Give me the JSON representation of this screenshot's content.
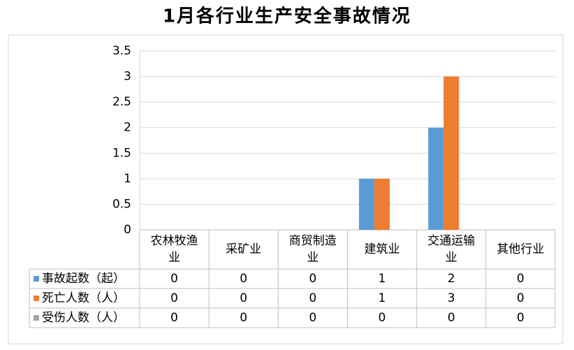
{
  "chart_data": {
    "type": "bar",
    "title": "1月各行业生产安全事故情况",
    "categories": [
      "农林牧渔业",
      "采矿业",
      "商贸制造业",
      "建筑业",
      "交通运输业",
      "其他行业"
    ],
    "series": [
      {
        "name": "事故起数（起）",
        "color": "#5b9bd5",
        "values": [
          0,
          0,
          0,
          1,
          2,
          0
        ]
      },
      {
        "name": "死亡人数（人）",
        "color": "#ed7d31",
        "values": [
          0,
          0,
          0,
          1,
          3,
          0
        ]
      },
      {
        "name": "受伤人数（人）",
        "color": "#a5a5a5",
        "values": [
          0,
          0,
          0,
          0,
          0,
          0
        ]
      }
    ],
    "ylim": [
      0,
      3.5
    ],
    "yticks": [
      0,
      0.5,
      1,
      1.5,
      2,
      2.5,
      3,
      3.5
    ],
    "grid": true
  }
}
